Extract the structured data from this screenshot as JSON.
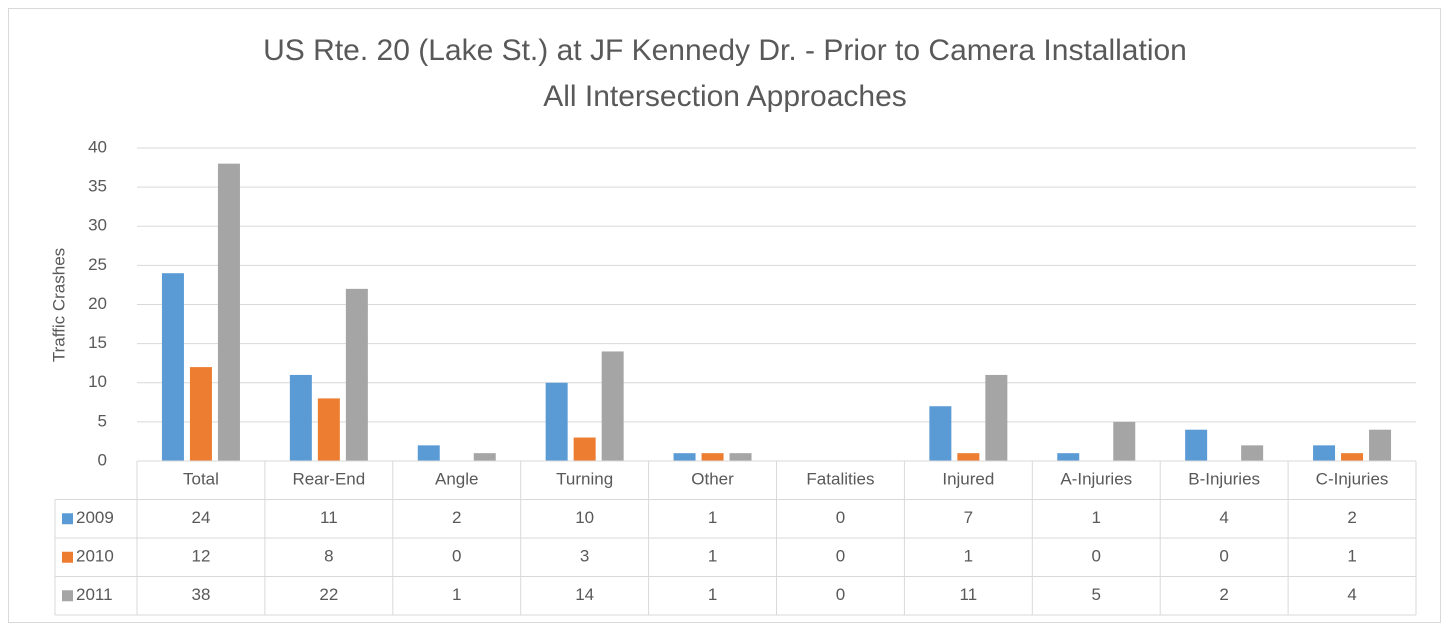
{
  "chart_data": {
    "type": "bar",
    "title": "US Rte. 20 (Lake St.) at JF Kennedy Dr. - Prior to Camera Installation",
    "subtitle": "All Intersection Approaches",
    "y_label": "Traffic Crashes",
    "categories": [
      "Total",
      "Rear-End",
      "Angle",
      "Turning",
      "Other",
      "Fatalities",
      "Injured",
      "A-Injuries",
      "B-Injuries",
      "C-Injuries"
    ],
    "series": [
      {
        "name": "2009",
        "color": "#5b9bd5",
        "values": [
          24,
          11,
          2,
          10,
          1,
          0,
          7,
          1,
          4,
          2
        ]
      },
      {
        "name": "2010",
        "color": "#ed7d31",
        "values": [
          12,
          8,
          0,
          3,
          1,
          0,
          1,
          0,
          0,
          1
        ]
      },
      {
        "name": "2011",
        "color": "#a5a5a5",
        "values": [
          38,
          22,
          1,
          14,
          1,
          0,
          11,
          5,
          2,
          4
        ]
      }
    ],
    "ylim": [
      0,
      40
    ],
    "yticks": [
      0,
      5,
      10,
      15,
      20,
      25,
      30,
      35,
      40
    ],
    "grid": true,
    "data_table": true
  }
}
